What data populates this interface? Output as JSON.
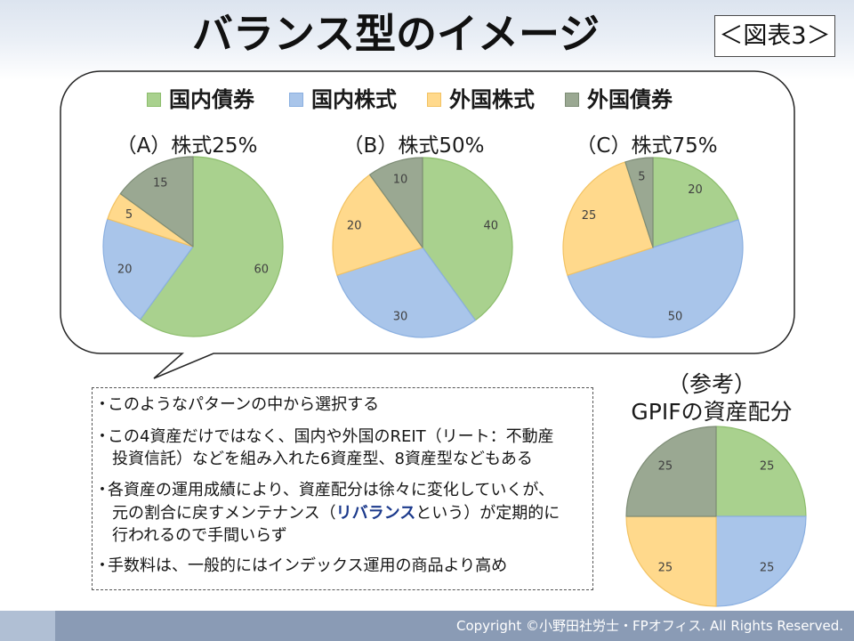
{
  "title": "バランス型のイメージ",
  "figure_label": "＜図表3＞",
  "series_colors": [
    "#a9d18e",
    "#a9c5ea",
    "#ffd98c",
    "#9aa892"
  ],
  "series_border_colors": [
    "#8cbd6c",
    "#8aafe0",
    "#f2c262",
    "#7d8c75"
  ],
  "notes": {
    "bullet": "・",
    "items": [
      {
        "lines": [
          "このようなパターンの中から選択する"
        ]
      },
      {
        "lines": [
          "この4資産だけではなく、国内や外国のREIT（リート：不動産",
          "投資信託）などを組み入れた6資産型、8資産型などもある"
        ]
      },
      {
        "lines": [
          "各資産の運用成績により、資産配分は徐々に変化していくが、",
          {
            "before": "元の割合に戻すメンテナンス（",
            "highlight": "リバランス",
            "after": "という）が定期的に"
          },
          "行われるので手間いらず"
        ]
      },
      {
        "lines": [
          "手数料は、一般的にはインデックス運用の商品より高め"
        ]
      }
    ]
  },
  "footer": "Copyright ©小野田社労士・FPオフィス. All Rights Reserved.",
  "chart_data": [
    {
      "type": "pie",
      "title": "（A）株式25%",
      "categories": [
        "国内債券",
        "国内株式",
        "外国株式",
        "外国債券"
      ],
      "values": [
        60,
        20,
        5,
        15
      ],
      "legend": "top"
    },
    {
      "type": "pie",
      "title": "（B）株式50%",
      "categories": [
        "国内債券",
        "国内株式",
        "外国株式",
        "外国債券"
      ],
      "values": [
        40,
        30,
        20,
        10
      ],
      "legend": "top"
    },
    {
      "type": "pie",
      "title": "（C）株式75%",
      "categories": [
        "国内債券",
        "国内株式",
        "外国株式",
        "外国債券"
      ],
      "values": [
        20,
        50,
        25,
        5
      ],
      "legend": "top"
    },
    {
      "type": "pie",
      "pre_title": "（参考）",
      "title": "GPIFの資産配分",
      "categories": [
        "国内債券",
        "国内株式",
        "外国株式",
        "外国債券"
      ],
      "values": [
        25,
        25,
        25,
        25
      ]
    }
  ]
}
